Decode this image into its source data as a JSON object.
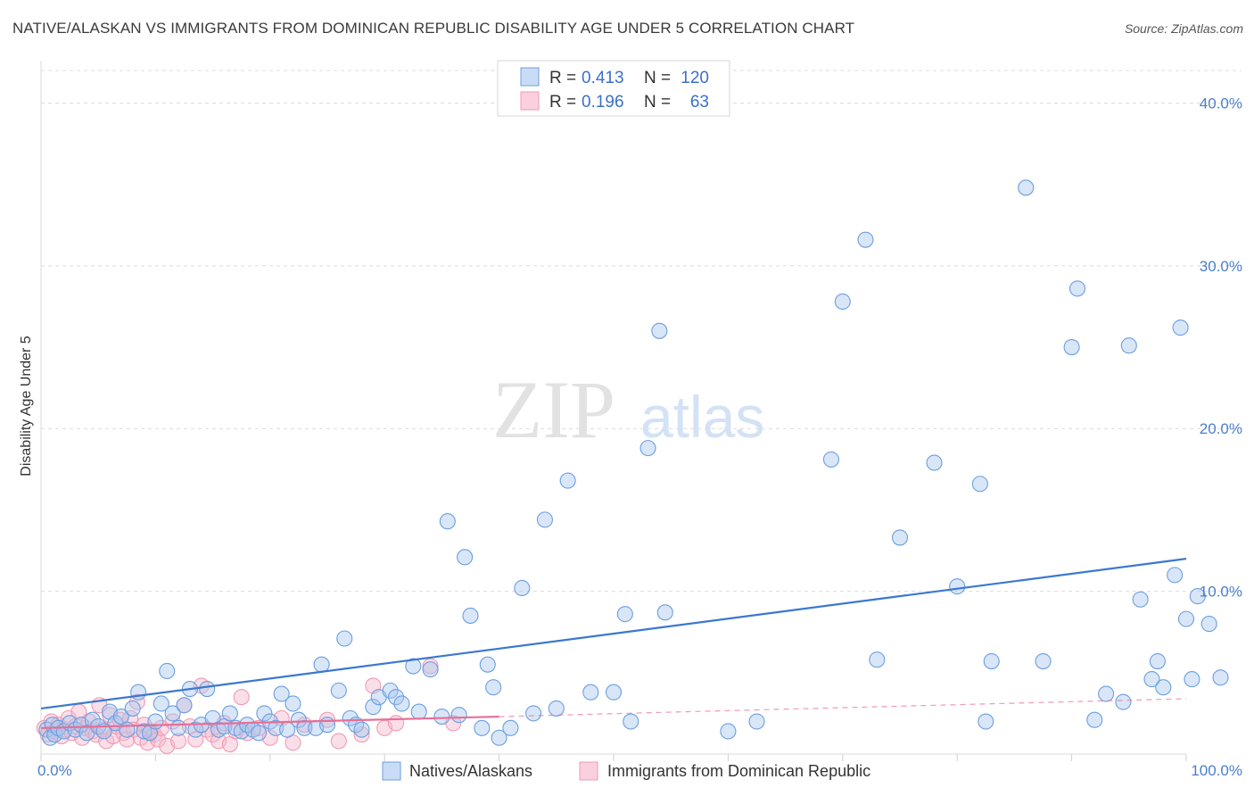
{
  "title": "NATIVE/ALASKAN VS IMMIGRANTS FROM DOMINICAN REPUBLIC DISABILITY AGE UNDER 5 CORRELATION CHART",
  "source": "Source: ZipAtlas.com",
  "watermark": {
    "zip": "ZIP",
    "atlas": "atlas"
  },
  "chart_data": {
    "type": "scatter",
    "title": "NATIVE/ALASKAN VS IMMIGRANTS FROM DOMINICAN REPUBLIC DISABILITY AGE UNDER 5 CORRELATION CHART",
    "xlabel": "",
    "ylabel": "Disability Age Under 5",
    "xlim": [
      0,
      100
    ],
    "ylim": [
      0,
      42
    ],
    "x_tick_labels": [
      "0.0%",
      "100.0%"
    ],
    "y_ticks": [
      10,
      20,
      30,
      40
    ],
    "y_tick_labels": [
      "10.0%",
      "20.0%",
      "30.0%",
      "40.0%"
    ],
    "grid": true,
    "legend_position": "top-center",
    "colors": {
      "natives": "#6b9fe0",
      "dominican": "#f19ab5",
      "natives_line": "#3a78d0",
      "dominican_line": "#e86e96"
    },
    "stats": [
      {
        "r_label": "R =",
        "r": "0.413",
        "n_label": "N =",
        "n": "120"
      },
      {
        "r_label": "R =",
        "r": "0.196",
        "n_label": "N =",
        "n": "63"
      }
    ],
    "series": [
      {
        "name": "Natives/Alaskans",
        "trend": {
          "x": [
            0,
            100
          ],
          "y": [
            2.8,
            12.0
          ]
        },
        "points": [
          [
            0.5,
            1.5
          ],
          [
            0.8,
            1.0
          ],
          [
            1.0,
            1.8
          ],
          [
            1.2,
            1.2
          ],
          [
            1.5,
            1.6
          ],
          [
            2.0,
            1.4
          ],
          [
            2.5,
            1.9
          ],
          [
            3.0,
            1.5
          ],
          [
            3.5,
            1.8
          ],
          [
            4.0,
            1.3
          ],
          [
            4.5,
            2.1
          ],
          [
            5.0,
            1.7
          ],
          [
            5.5,
            1.4
          ],
          [
            6.0,
            2.6
          ],
          [
            6.5,
            1.9
          ],
          [
            7.0,
            2.3
          ],
          [
            7.5,
            1.5
          ],
          [
            8.0,
            2.8
          ],
          [
            8.5,
            3.8
          ],
          [
            9.0,
            1.4
          ],
          [
            9.5,
            1.3
          ],
          [
            10.0,
            2.0
          ],
          [
            10.5,
            3.1
          ],
          [
            11.0,
            5.1
          ],
          [
            11.5,
            2.5
          ],
          [
            12.0,
            1.6
          ],
          [
            12.5,
            3.0
          ],
          [
            13.0,
            4.0
          ],
          [
            13.5,
            1.5
          ],
          [
            14.0,
            1.8
          ],
          [
            14.5,
            4.0
          ],
          [
            15.0,
            2.2
          ],
          [
            15.5,
            1.5
          ],
          [
            16.0,
            1.7
          ],
          [
            16.5,
            2.5
          ],
          [
            17.0,
            1.6
          ],
          [
            17.5,
            1.4
          ],
          [
            18.0,
            1.8
          ],
          [
            18.5,
            1.5
          ],
          [
            19.0,
            1.3
          ],
          [
            19.5,
            2.5
          ],
          [
            20.0,
            2.0
          ],
          [
            20.5,
            1.6
          ],
          [
            21.0,
            3.7
          ],
          [
            21.5,
            1.5
          ],
          [
            22.0,
            3.1
          ],
          [
            22.5,
            2.1
          ],
          [
            23.0,
            1.6
          ],
          [
            24.0,
            1.6
          ],
          [
            24.5,
            5.5
          ],
          [
            25.0,
            1.8
          ],
          [
            26.0,
            3.9
          ],
          [
            26.5,
            7.1
          ],
          [
            27.0,
            2.2
          ],
          [
            27.5,
            1.8
          ],
          [
            28.0,
            1.5
          ],
          [
            29.0,
            2.9
          ],
          [
            29.5,
            3.5
          ],
          [
            30.5,
            3.9
          ],
          [
            31.0,
            3.5
          ],
          [
            31.5,
            3.1
          ],
          [
            32.5,
            5.4
          ],
          [
            33.0,
            2.6
          ],
          [
            34.0,
            5.2
          ],
          [
            35.0,
            2.3
          ],
          [
            35.5,
            14.3
          ],
          [
            36.5,
            2.4
          ],
          [
            37.0,
            12.1
          ],
          [
            37.5,
            8.5
          ],
          [
            38.5,
            1.6
          ],
          [
            39.0,
            5.5
          ],
          [
            39.5,
            4.1
          ],
          [
            40.0,
            1.0
          ],
          [
            41.0,
            1.6
          ],
          [
            42.0,
            10.2
          ],
          [
            43.0,
            2.5
          ],
          [
            44.0,
            14.4
          ],
          [
            45.0,
            2.8
          ],
          [
            46.0,
            16.8
          ],
          [
            48.0,
            3.8
          ],
          [
            50.0,
            3.8
          ],
          [
            51.0,
            8.6
          ],
          [
            51.5,
            2.0
          ],
          [
            53.0,
            18.8
          ],
          [
            54.0,
            26.0
          ],
          [
            54.5,
            8.7
          ],
          [
            60.0,
            1.4
          ],
          [
            62.5,
            2.0
          ],
          [
            69.0,
            18.1
          ],
          [
            70.0,
            27.8
          ],
          [
            72.0,
            31.6
          ],
          [
            73.0,
            5.8
          ],
          [
            75.0,
            13.3
          ],
          [
            78.0,
            17.9
          ],
          [
            80.0,
            10.3
          ],
          [
            82.0,
            16.6
          ],
          [
            82.5,
            2.0
          ],
          [
            83.0,
            5.7
          ],
          [
            86.0,
            34.8
          ],
          [
            87.5,
            5.7
          ],
          [
            90.0,
            25.0
          ],
          [
            90.5,
            28.6
          ],
          [
            92.0,
            2.1
          ],
          [
            93.0,
            3.7
          ],
          [
            94.5,
            3.2
          ],
          [
            95.0,
            25.1
          ],
          [
            96.0,
            9.5
          ],
          [
            97.0,
            4.6
          ],
          [
            97.5,
            5.7
          ],
          [
            98.0,
            4.1
          ],
          [
            99.0,
            11.0
          ],
          [
            99.5,
            26.2
          ],
          [
            100.0,
            8.3
          ],
          [
            100.5,
            4.6
          ],
          [
            101.0,
            9.7
          ],
          [
            102.0,
            8.0
          ],
          [
            103.0,
            4.7
          ]
        ]
      },
      {
        "name": "Immigrants from Dominican Republic",
        "trend": {
          "x": [
            0,
            40
          ],
          "y": [
            1.6,
            2.3
          ]
        },
        "trend_extension": {
          "x": [
            40,
            100
          ],
          "y": [
            2.3,
            3.4
          ]
        },
        "points": [
          [
            0.3,
            1.6
          ],
          [
            0.6,
            1.2
          ],
          [
            0.9,
            2.0
          ],
          [
            1.2,
            1.4
          ],
          [
            1.5,
            1.8
          ],
          [
            1.8,
            1.1
          ],
          [
            2.1,
            1.5
          ],
          [
            2.4,
            2.2
          ],
          [
            2.7,
            1.3
          ],
          [
            3.0,
            1.7
          ],
          [
            3.3,
            2.6
          ],
          [
            3.6,
            1.0
          ],
          [
            3.9,
            1.6
          ],
          [
            4.2,
            2.0
          ],
          [
            4.5,
            1.4
          ],
          [
            4.8,
            1.2
          ],
          [
            5.1,
            3.0
          ],
          [
            5.4,
            1.5
          ],
          [
            5.7,
            0.8
          ],
          [
            6.0,
            2.4
          ],
          [
            6.3,
            1.1
          ],
          [
            6.6,
            1.7
          ],
          [
            6.9,
            2.1
          ],
          [
            7.2,
            1.3
          ],
          [
            7.5,
            0.9
          ],
          [
            7.8,
            2.2
          ],
          [
            8.1,
            1.5
          ],
          [
            8.4,
            3.2
          ],
          [
            8.7,
            1.0
          ],
          [
            9.0,
            1.8
          ],
          [
            9.3,
            0.7
          ],
          [
            9.6,
            1.4
          ],
          [
            9.9,
            1.2
          ],
          [
            10.2,
            0.9
          ],
          [
            10.5,
            1.6
          ],
          [
            11.0,
            0.5
          ],
          [
            11.5,
            2.0
          ],
          [
            12.0,
            0.8
          ],
          [
            12.5,
            3.0
          ],
          [
            13.0,
            1.7
          ],
          [
            13.5,
            0.9
          ],
          [
            14.0,
            4.2
          ],
          [
            14.5,
            1.5
          ],
          [
            15.0,
            1.2
          ],
          [
            15.5,
            0.8
          ],
          [
            16.0,
            1.9
          ],
          [
            16.5,
            0.6
          ],
          [
            17.0,
            1.4
          ],
          [
            17.5,
            3.5
          ],
          [
            18.0,
            1.3
          ],
          [
            19.0,
            1.6
          ],
          [
            20.0,
            1.0
          ],
          [
            21.0,
            2.2
          ],
          [
            22.0,
            0.7
          ],
          [
            23.0,
            1.8
          ],
          [
            25.0,
            2.1
          ],
          [
            26.0,
            0.8
          ],
          [
            28.0,
            1.2
          ],
          [
            29.0,
            4.2
          ],
          [
            30.0,
            1.6
          ],
          [
            31.0,
            1.9
          ],
          [
            34.0,
            5.4
          ],
          [
            36.0,
            1.9
          ]
        ]
      }
    ]
  },
  "legend": {
    "items": [
      {
        "label": "Natives/Alaskans"
      },
      {
        "label": "Immigrants from Dominican Republic"
      }
    ]
  }
}
